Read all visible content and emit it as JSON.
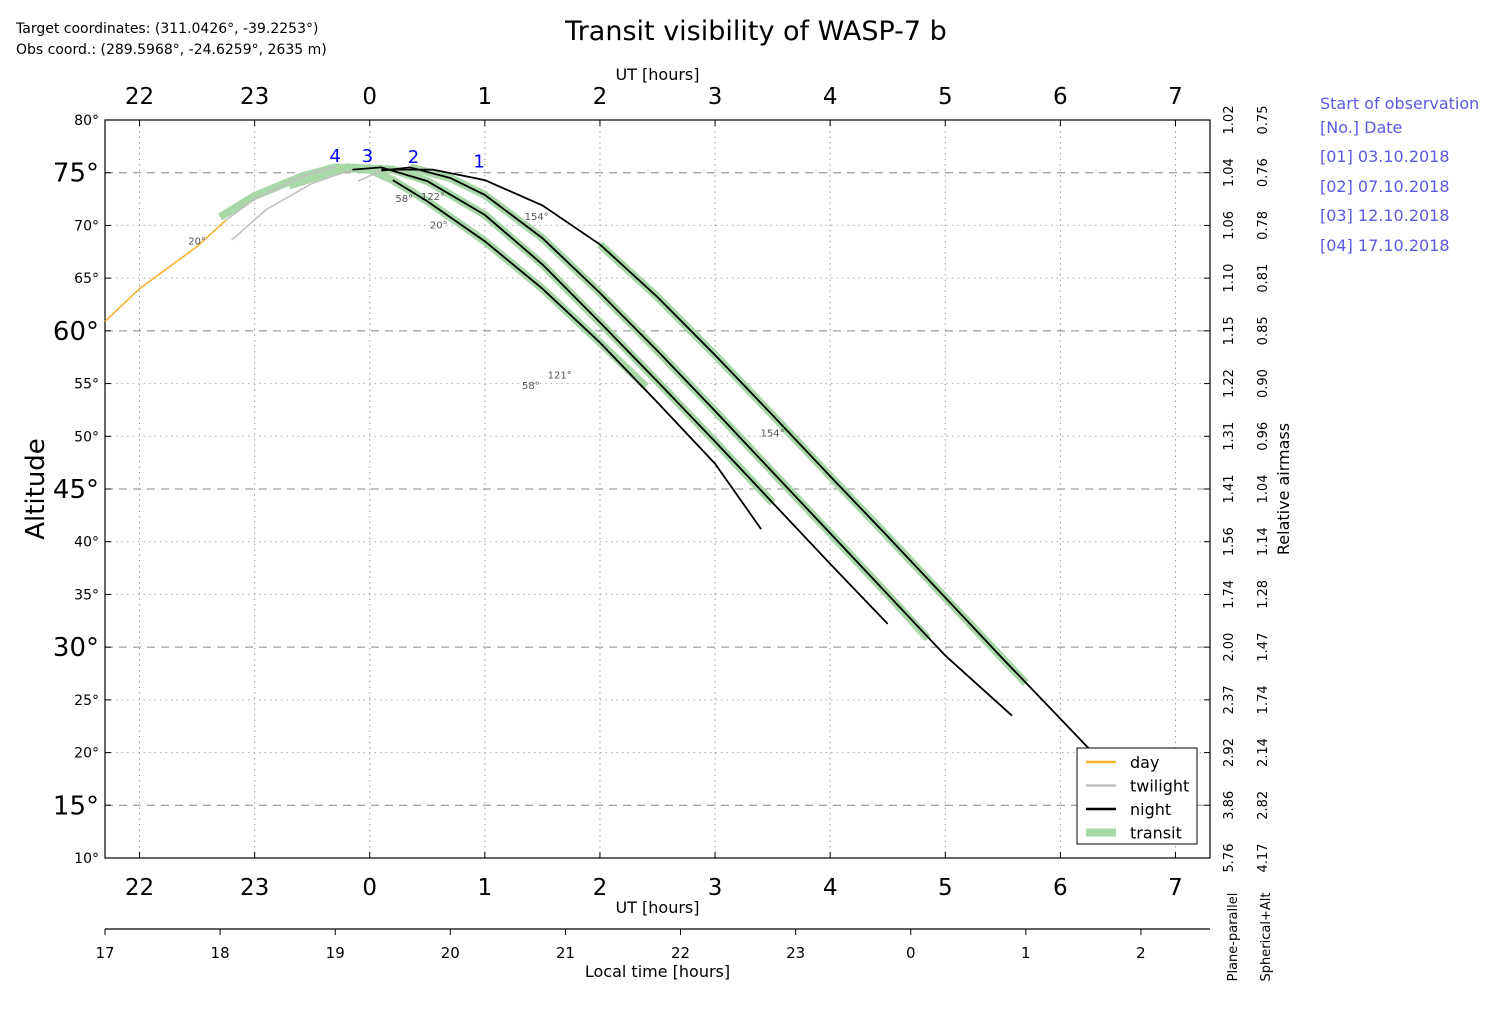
{
  "header": {
    "target_coords": "Target coordinates: (311.0426$^\\circ$, -39.2253$^\\circ$)",
    "target_coords_display": "Target coordinates: (311.0426°, -39.2253°)",
    "obs_coords_display": "Obs coord.: (289.5968°, -24.6259°, 2635 m)"
  },
  "sidebar": {
    "title": "Start of observation",
    "subtitle": "[No.]  Date",
    "entries": [
      "[01]  03.10.2018",
      "[02]  07.10.2018",
      "[03]  12.10.2018",
      "[04]  17.10.2018"
    ]
  },
  "colors": {
    "day": "#f5b32f",
    "twilight": "#c0c0c0",
    "night": "#000000",
    "transit": "#a8d8a8",
    "sidebar_text": "#5a5ae0",
    "night_number": "#0000ff"
  },
  "chart_data": {
    "type": "line",
    "title": "Transit visibility of WASP-7 b",
    "ylabel": "Altitude",
    "ylabel_right": "Relative airmass",
    "xlabel_top": "UT [hours]",
    "xlabel_bottom": "UT [hours]",
    "xlabel_local": "Local time [hours]",
    "xlim_ut_hours": [
      -2.3,
      7.3
    ],
    "ylim": [
      10,
      80
    ],
    "ut_ticks": [
      -2,
      -1,
      0,
      1,
      2,
      3,
      4,
      5,
      6,
      7
    ],
    "ut_tick_labels": [
      "22",
      "23",
      "0",
      "1",
      "2",
      "3",
      "4",
      "5",
      "6",
      "7"
    ],
    "local_tick_labels": [
      "17",
      "18",
      "19",
      "20",
      "21",
      "22",
      "23",
      "0",
      "1",
      "2"
    ],
    "y_ticks": [
      10,
      15,
      20,
      25,
      30,
      35,
      40,
      45,
      50,
      55,
      60,
      65,
      70,
      75,
      80
    ],
    "y_tick_labels": [
      "10°",
      "15°",
      "20°",
      "25°",
      "30°",
      "35°",
      "40°",
      "45°",
      "50°",
      "55°",
      "60°",
      "65°",
      "70°",
      "75°",
      "80°"
    ],
    "y_major_ticks": [
      15,
      30,
      45,
      60,
      75
    ],
    "airmass_plane_parallel": [
      "5.76",
      "3.86",
      "2.92",
      "2.37",
      "2.00",
      "1.74",
      "1.56",
      "1.41",
      "1.31",
      "1.22",
      "1.15",
      "1.10",
      "1.06",
      "1.04",
      "1.02"
    ],
    "airmass_spherical_alt": [
      "4.17",
      "2.82",
      "2.14",
      "1.74",
      "1.47",
      "1.28",
      "1.14",
      "1.04",
      "0.96",
      "0.90",
      "0.85",
      "0.81",
      "0.78",
      "0.76",
      "0.75"
    ],
    "airmass_label_plane": "Plane-parallel",
    "airmass_label_spherical": "Spherical+Alt",
    "grid": true,
    "legend_position": "bottom-right",
    "legend": [
      {
        "key": "day",
        "label": "day"
      },
      {
        "key": "twilight",
        "label": "twilight"
      },
      {
        "key": "night",
        "label": "night"
      },
      {
        "key": "transit",
        "label": "transit"
      }
    ],
    "series": [
      {
        "name": "1",
        "night": [
          [
            0.1,
            75.3
          ],
          [
            0.55,
            75.3
          ],
          [
            1.0,
            74.3
          ],
          [
            1.5,
            71.9
          ],
          [
            2.0,
            68.2
          ],
          [
            2.5,
            63.2
          ],
          [
            3.0,
            57.7
          ],
          [
            3.5,
            52.0
          ],
          [
            4.0,
            46.2
          ],
          [
            4.5,
            40.5
          ],
          [
            5.0,
            34.7
          ],
          [
            5.5,
            28.9
          ],
          [
            6.0,
            23.2
          ],
          [
            6.5,
            17.5
          ],
          [
            6.75,
            14.8
          ]
        ],
        "transit": [
          [
            2.0,
            68.2
          ],
          [
            2.5,
            63.2
          ],
          [
            3.0,
            57.7
          ],
          [
            3.5,
            52.0
          ],
          [
            4.0,
            46.2
          ],
          [
            4.5,
            40.5
          ],
          [
            5.0,
            34.7
          ],
          [
            5.5,
            28.9
          ],
          [
            5.7,
            26.6
          ]
        ],
        "annotations": [
          {
            "x": 1.45,
            "y": 70.5,
            "text": "154°"
          },
          {
            "x": 3.5,
            "y": 50.0,
            "text": "154°"
          }
        ]
      },
      {
        "name": "2",
        "twilight": [
          [
            -0.1,
            74.2
          ],
          [
            0.1,
            75.2
          ]
        ],
        "night": [
          [
            0.1,
            75.2
          ],
          [
            0.35,
            75.5
          ],
          [
            0.7,
            74.5
          ],
          [
            1.0,
            72.9
          ],
          [
            1.5,
            68.8
          ],
          [
            2.0,
            63.6
          ],
          [
            2.5,
            58.1
          ],
          [
            3.0,
            52.4
          ],
          [
            3.5,
            46.6
          ],
          [
            4.0,
            40.8
          ],
          [
            4.5,
            35.0
          ],
          [
            5.0,
            29.2
          ],
          [
            5.58,
            23.5
          ]
        ],
        "transit": [
          [
            0.35,
            75.5
          ],
          [
            0.7,
            74.5
          ],
          [
            1.0,
            72.9
          ],
          [
            1.5,
            68.8
          ],
          [
            2.0,
            63.6
          ],
          [
            2.5,
            58.1
          ],
          [
            3.0,
            52.4
          ],
          [
            3.5,
            46.6
          ],
          [
            4.0,
            40.8
          ],
          [
            4.5,
            35.0
          ],
          [
            4.85,
            30.8
          ]
        ],
        "annotations": [
          {
            "x": 0.55,
            "y": 72.4,
            "text": "122°"
          },
          {
            "x": 1.65,
            "y": 55.5,
            "text": "121°"
          }
        ]
      },
      {
        "name": "3",
        "twilight": [
          [
            -1.2,
            68.6
          ],
          [
            -0.9,
            71.5
          ],
          [
            -0.5,
            74.0
          ],
          [
            -0.15,
            75.3
          ]
        ],
        "night": [
          [
            -0.15,
            75.3
          ],
          [
            0.1,
            75.5
          ],
          [
            0.5,
            74.2
          ],
          [
            1.0,
            71.0
          ],
          [
            1.5,
            66.3
          ],
          [
            2.0,
            60.8
          ],
          [
            2.5,
            55.2
          ],
          [
            3.0,
            49.5
          ],
          [
            3.5,
            43.7
          ],
          [
            4.0,
            37.9
          ],
          [
            4.5,
            32.2
          ]
        ],
        "transit": [
          [
            -0.7,
            73.8
          ],
          [
            -0.2,
            75.5
          ],
          [
            0.2,
            75.3
          ],
          [
            0.5,
            74.2
          ],
          [
            1.0,
            71.0
          ],
          [
            1.5,
            66.3
          ],
          [
            2.0,
            60.8
          ],
          [
            2.5,
            55.2
          ],
          [
            3.0,
            49.5
          ],
          [
            3.5,
            43.7
          ],
          [
            3.5,
            43.7
          ]
        ],
        "annotations": [
          {
            "x": 0.3,
            "y": 72.2,
            "text": "58°"
          },
          {
            "x": 1.4,
            "y": 54.5,
            "text": "58°"
          }
        ]
      },
      {
        "name": "4",
        "day": [
          [
            -2.3,
            60.9
          ],
          [
            -2.0,
            64.0
          ],
          [
            -1.5,
            68.0
          ],
          [
            -1.25,
            70.5
          ]
        ],
        "twilight": [
          [
            -1.25,
            70.5
          ],
          [
            -1.0,
            72.5
          ],
          [
            -0.6,
            74.6
          ],
          [
            -0.3,
            75.6
          ]
        ],
        "night": [
          [
            0.2,
            74.3
          ],
          [
            0.5,
            72.3
          ],
          [
            1.0,
            68.5
          ],
          [
            1.5,
            64.0
          ],
          [
            2.0,
            58.9
          ],
          [
            2.5,
            53.2
          ],
          [
            3.0,
            47.4
          ],
          [
            3.4,
            41.2
          ]
        ],
        "transit": [
          [
            -1.3,
            70.8
          ],
          [
            -1.0,
            72.8
          ],
          [
            -0.6,
            74.6
          ],
          [
            -0.3,
            75.5
          ],
          [
            0.0,
            75.3
          ],
          [
            0.2,
            74.3
          ],
          [
            0.5,
            72.3
          ],
          [
            1.0,
            68.5
          ],
          [
            1.5,
            64.0
          ],
          [
            2.0,
            58.9
          ],
          [
            2.4,
            54.7
          ]
        ],
        "annotations": [
          {
            "x": -1.5,
            "y": 68.2,
            "text": "20°"
          },
          {
            "x": 0.6,
            "y": 69.7,
            "text": "20°"
          }
        ]
      }
    ],
    "night_numbers": [
      {
        "label": "1",
        "x": 0.95,
        "y": 75.5
      },
      {
        "label": "2",
        "x": 0.38,
        "y": 75.9
      },
      {
        "label": "3",
        "x": -0.02,
        "y": 76.0
      },
      {
        "label": "4",
        "x": -0.3,
        "y": 76.0
      }
    ]
  }
}
